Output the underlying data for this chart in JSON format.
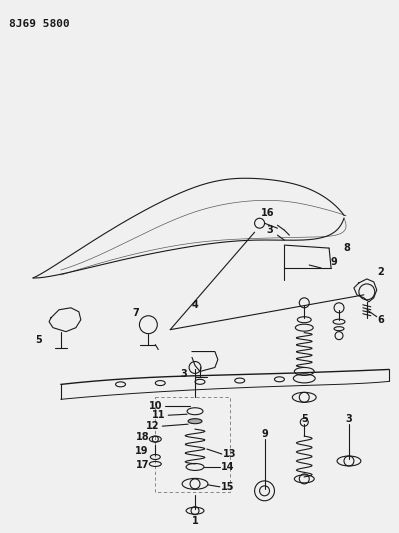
{
  "title_code": "8J69 5800",
  "bg_color": "#f0f0f0",
  "line_color": "#1a1a1a",
  "label_color": "#1a1a1a",
  "fig_width": 3.99,
  "fig_height": 5.33,
  "dpi": 100
}
